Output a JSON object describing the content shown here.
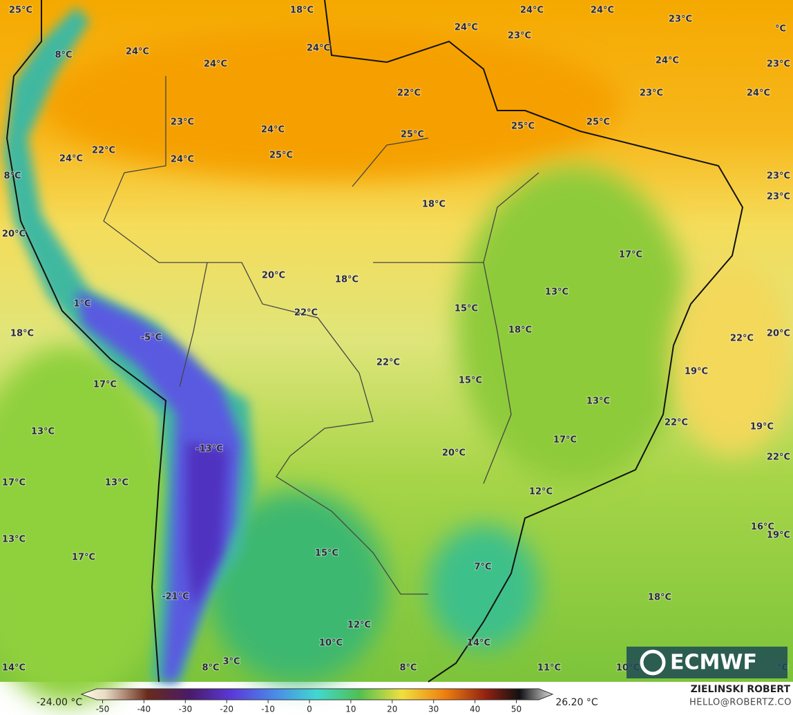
{
  "map": {
    "labels": [
      "25°C",
      "18°C",
      "24°C",
      "24°C",
      "23°C",
      "°C",
      "24°C",
      "23°C",
      "8°C",
      "24°C",
      "24°C",
      "24°C",
      "24°C",
      "23°C",
      "22°C",
      "23°C",
      "24°C",
      "23°C",
      "24°C",
      "25°C",
      "25°C",
      "25°C",
      "22°C",
      "24°C",
      "24°C",
      "25°C",
      "8°C",
      "23°C",
      "23°C",
      "18°C",
      "20°C",
      "17°C",
      "20°C",
      "18°C",
      "1°C",
      "13°C",
      "15°C",
      "22°C",
      "18°C",
      "-5°C",
      "18°C",
      "22°C",
      "20°C",
      "22°C",
      "19°C",
      "17°C",
      "15°C",
      "13°C",
      "22°C",
      "13°C",
      "19°C",
      "-13°C",
      "17°C",
      "20°C",
      "22°C",
      "17°C",
      "13°C",
      "12°C",
      "16°C",
      "19°C",
      "13°C",
      "17°C",
      "15°C",
      "7°C",
      "-21°C",
      "18°C",
      "12°C",
      "10°C",
      "14°C",
      "8°C",
      "3°C",
      "14°C",
      "8°C",
      "11°C",
      "10°C",
      "°C"
    ]
  },
  "colorbar": {
    "min_label": "-24.00 °C",
    "max_label": "26.20 °C",
    "ticks": [
      -50,
      -40,
      -30,
      -20,
      -10,
      0,
      10,
      20,
      30,
      40,
      50
    ]
  },
  "credit": {
    "name": "ZIELINSKI ROBERT",
    "email": "HELLO@ROBERTZ.CO"
  },
  "logo": "ECMWF"
}
